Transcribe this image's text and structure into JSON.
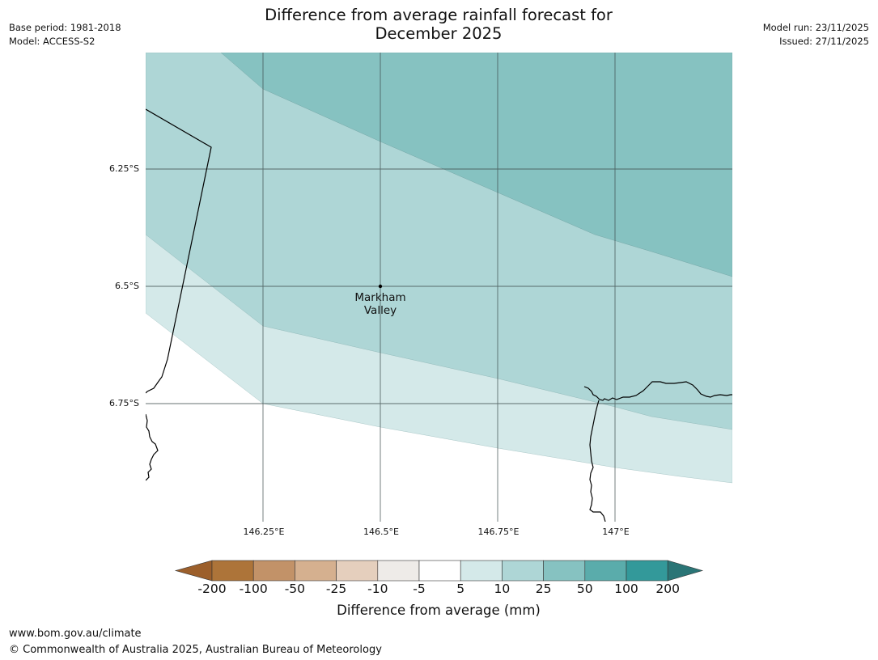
{
  "title": {
    "line1": "Difference from average rainfall forecast for",
    "line2": "December 2025"
  },
  "meta_left": {
    "base_period": "Base period: 1981-2018",
    "model": "Model: ACCESS-S2"
  },
  "meta_right": {
    "model_run": "Model run: 23/11/2025",
    "issued": "Issued: 27/11/2025"
  },
  "map": {
    "lat_labels": [
      "6.25°S",
      "6.5°S",
      "6.75°S"
    ],
    "lon_labels": [
      "146.25°E",
      "146.5°E",
      "146.75°E",
      "147°E"
    ],
    "place": {
      "name_line1": "Markham",
      "name_line2": "Valley"
    },
    "zone_colors": {
      "band_50_100": "#86c2c1",
      "band_25_50": "#aed6d6",
      "band_10_25": "#d4e9e9",
      "below_5": "#ffffff"
    }
  },
  "colorbar": {
    "title": "Difference from average (mm)",
    "ticks": [
      "-200",
      "-100",
      "-50",
      "-25",
      "-10",
      "-5",
      "5",
      "10",
      "25",
      "50",
      "100",
      "200"
    ],
    "colors": [
      "#9c5f2b",
      "#ad7439",
      "#c29268",
      "#d5b08f",
      "#e5cfbd",
      "#eeebe8",
      "#ffffff",
      "#d4e9e9",
      "#aed6d6",
      "#86c2c1",
      "#5aacab",
      "#33999a",
      "#2a7576"
    ]
  },
  "footer": {
    "url": "www.bom.gov.au/climate",
    "copyright": "© Commonwealth of Australia 2025, Australian Bureau of Meteorology"
  }
}
